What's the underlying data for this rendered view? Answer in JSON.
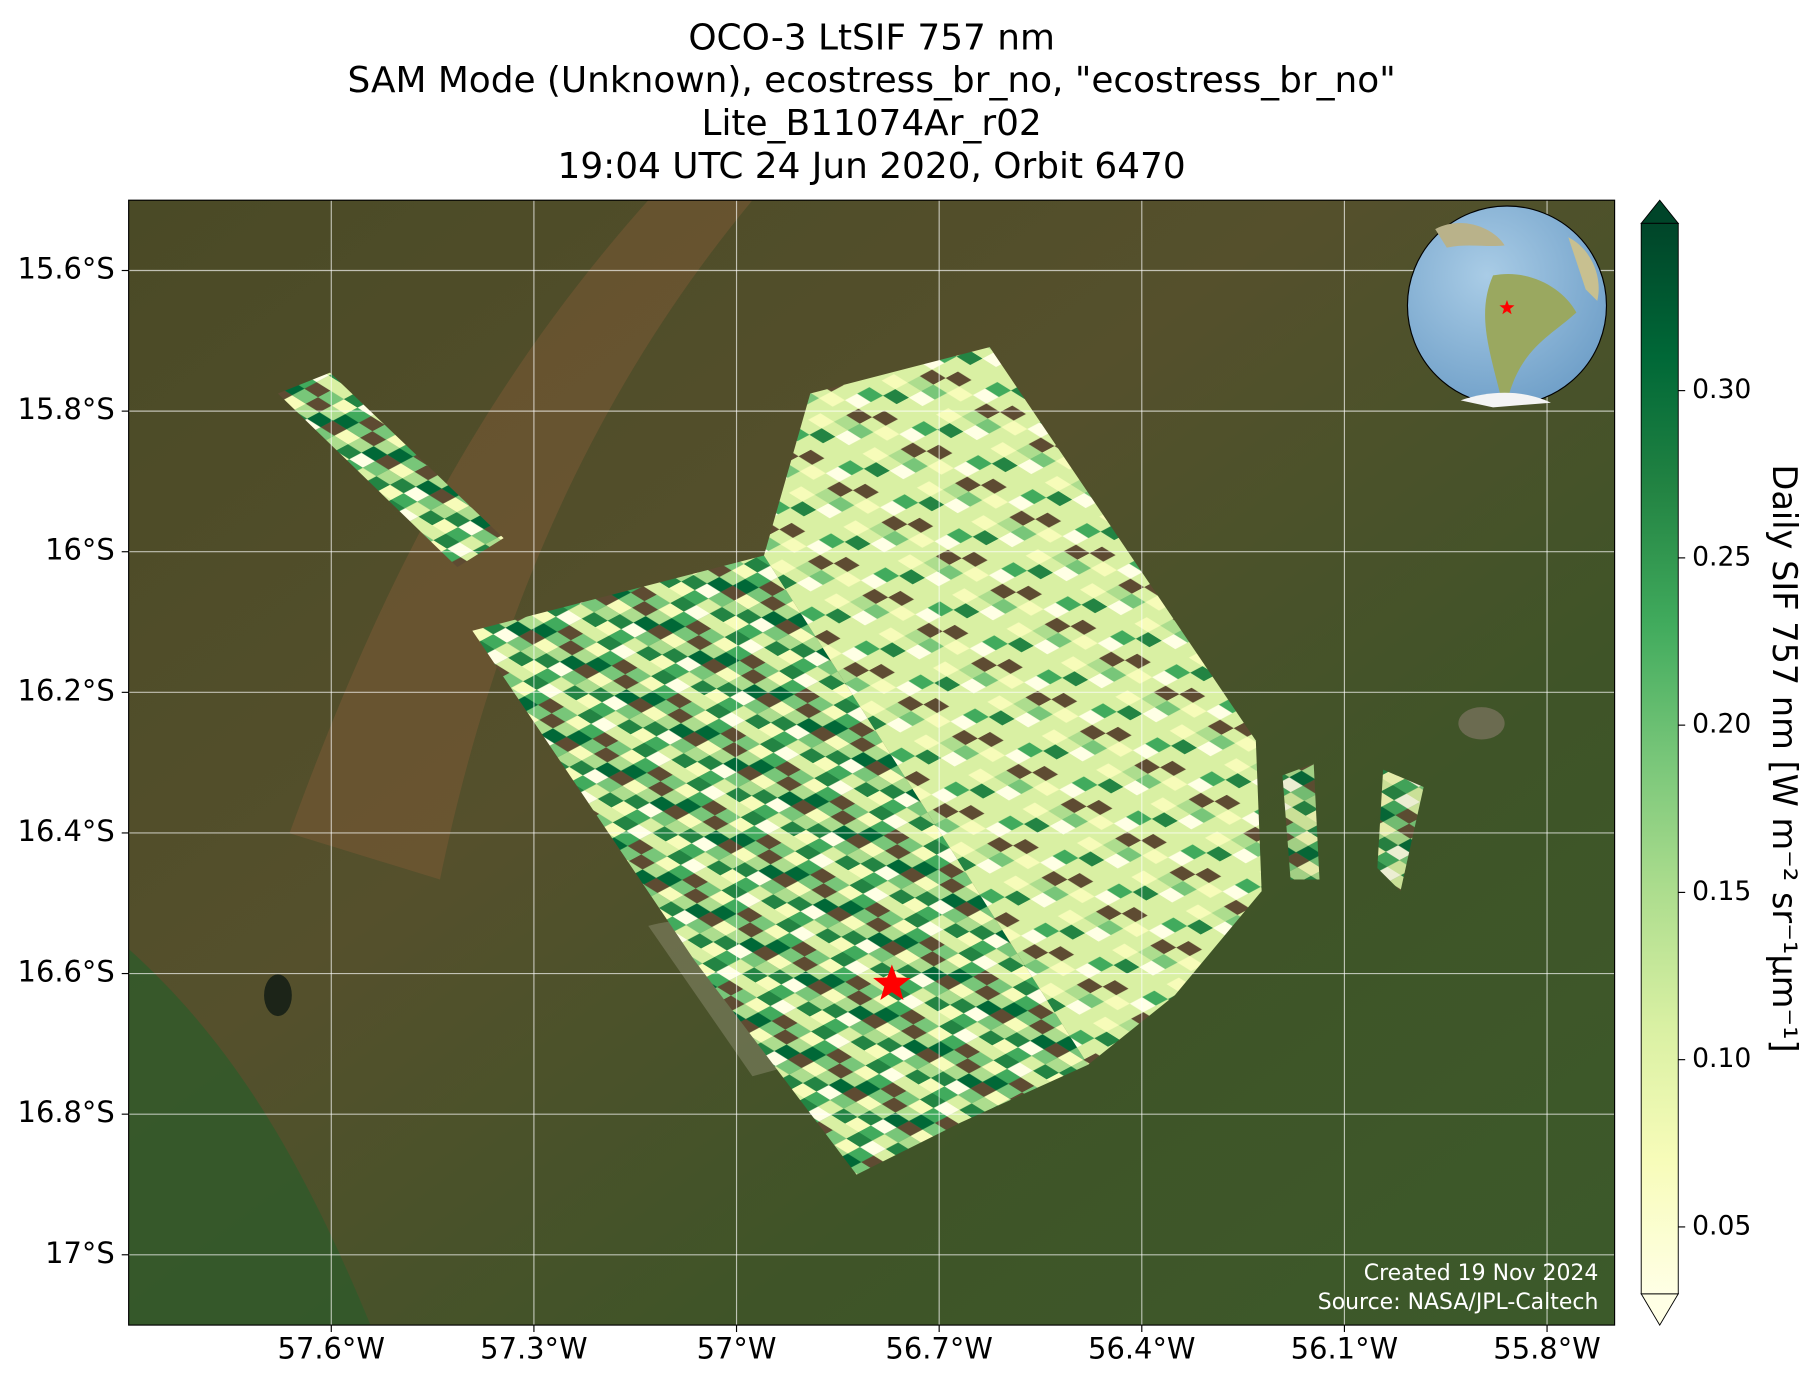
{
  "chart_data": {
    "type": "map",
    "title": [
      "OCO-3 LtSIF 757 nm",
      "SAM Mode (Unknown), ecostress_br_no, \"ecostress_br_no\"",
      "Lite_B11074Ar_r02",
      "19:04 UTC 24 Jun 2020, Orbit 6470"
    ],
    "xlim": [
      -57.9,
      -55.7
    ],
    "ylim": [
      -17.1,
      -15.5
    ],
    "xticks": [
      {
        "value": -57.6,
        "label": "57.6°W"
      },
      {
        "value": -57.3,
        "label": "57.3°W"
      },
      {
        "value": -57.0,
        "label": "57°W"
      },
      {
        "value": -56.7,
        "label": "56.7°W"
      },
      {
        "value": -56.4,
        "label": "56.4°W"
      },
      {
        "value": -56.1,
        "label": "56.1°W"
      },
      {
        "value": -55.8,
        "label": "55.8°W"
      }
    ],
    "yticks": [
      {
        "value": -15.6,
        "label": "15.6°S"
      },
      {
        "value": -15.8,
        "label": "15.8°S"
      },
      {
        "value": -16.0,
        "label": "16°S"
      },
      {
        "value": -16.2,
        "label": "16.2°S"
      },
      {
        "value": -16.4,
        "label": "16.4°S"
      },
      {
        "value": -16.6,
        "label": "16.6°S"
      },
      {
        "value": -16.8,
        "label": "16.8°S"
      },
      {
        "value": -17.0,
        "label": "17°S"
      }
    ],
    "grid": true,
    "target": {
      "lon": -56.77,
      "lat": -16.615,
      "color": "#ff0000"
    },
    "colorbar": {
      "label": "Daily SIF 757 nm [W m⁻² sr⁻¹μm⁻¹]",
      "lim": [
        0.03,
        0.35
      ],
      "ticks": [
        0.05,
        0.1,
        0.15,
        0.2,
        0.25,
        0.3
      ],
      "colormap": "YlGn"
    },
    "credits": [
      "Created 19 Nov 2024",
      "Source: NASA/JPL-Caltech"
    ]
  }
}
